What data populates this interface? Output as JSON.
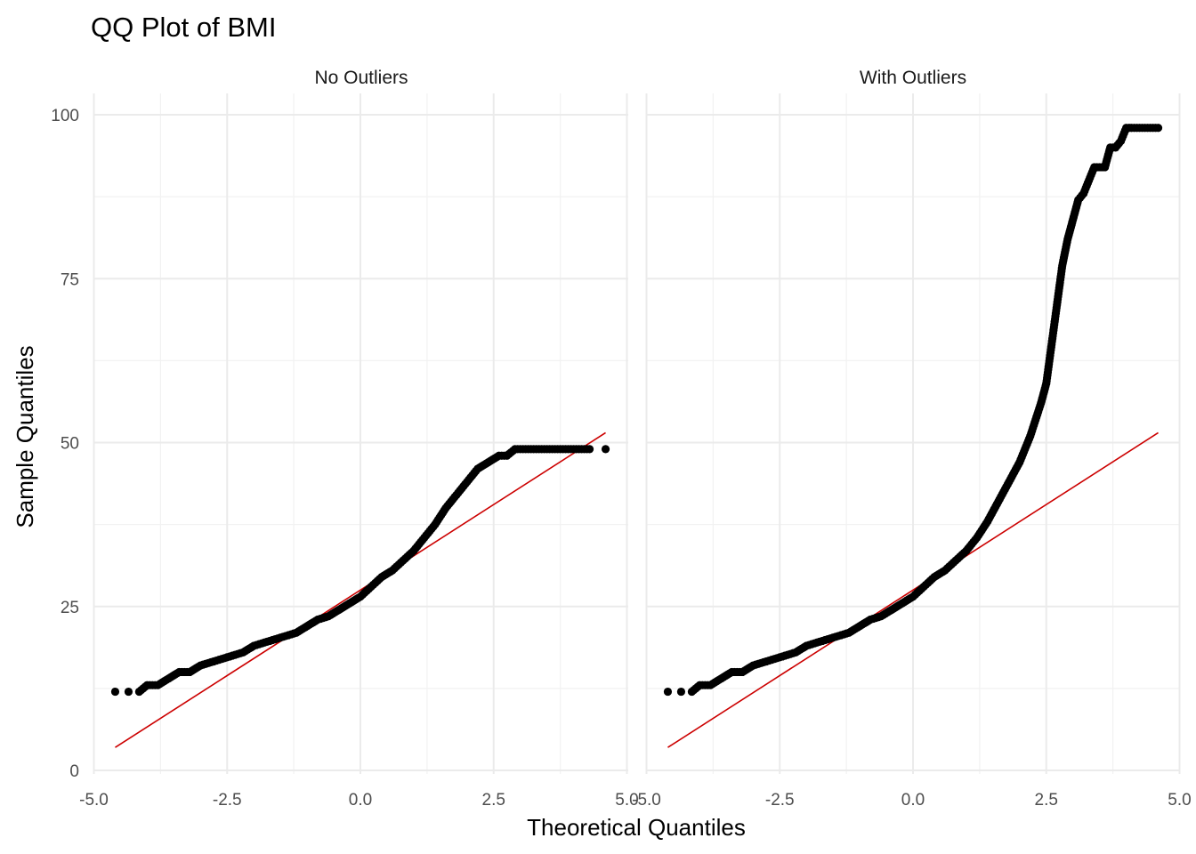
{
  "chart_data": {
    "type": "scatter",
    "title": "QQ Plot of BMI",
    "xlabel": "Theoretical Quantiles",
    "ylabel": "Sample Quantiles",
    "xlim": [
      -5,
      5
    ],
    "ylim": [
      0,
      100
    ],
    "x_ticks": [
      -5.0,
      -2.5,
      0.0,
      2.5,
      5.0
    ],
    "x_tick_labels": [
      "-5.0",
      "-2.5",
      "0.0",
      "2.5",
      "5.0"
    ],
    "y_ticks": [
      0,
      25,
      50,
      75,
      100
    ],
    "y_tick_labels": [
      "0",
      "25",
      "50",
      "75",
      "100"
    ],
    "grid": true,
    "legend": "none",
    "colors": {
      "points": "#000000",
      "reference_line": "#cc0000",
      "grid": "#ebebeb"
    },
    "panels": [
      {
        "name": "No Outliers",
        "series": [
          {
            "type": "scatter",
            "x": [
              -4.6,
              -4.35,
              -4.15,
              -4.0,
              -3.8,
              -3.6,
              -3.4,
              -3.2,
              -3.0,
              -2.8,
              -2.6,
              -2.4,
              -2.2,
              -2.0,
              -1.8,
              -1.6,
              -1.4,
              -1.2,
              -1.0,
              -0.8,
              -0.6,
              -0.4,
              -0.2,
              0.0,
              0.2,
              0.4,
              0.6,
              0.8,
              1.0,
              1.2,
              1.4,
              1.6,
              1.8,
              2.0,
              2.2,
              2.4,
              2.6,
              2.75,
              2.9,
              3.1,
              3.3,
              3.5,
              3.7,
              3.9,
              4.1,
              4.3,
              4.6
            ],
            "y": [
              12,
              12,
              12,
              13,
              13,
              14,
              15,
              15,
              16,
              16.5,
              17,
              17.5,
              18,
              19,
              19.5,
              20,
              20.5,
              21,
              22,
              23,
              23.5,
              24.5,
              25.5,
              26.5,
              28,
              29.5,
              30.5,
              32,
              33.5,
              35.5,
              37.5,
              40,
              42,
              44,
              46,
              47,
              48,
              48,
              49,
              49,
              49,
              49,
              49,
              49,
              49,
              49,
              49
            ]
          },
          {
            "type": "line",
            "x": [
              -4.6,
              4.6
            ],
            "y": [
              3.5,
              51.5
            ]
          }
        ]
      },
      {
        "name": "With Outliers",
        "series": [
          {
            "type": "scatter",
            "x": [
              -4.6,
              -4.35,
              -4.15,
              -4.0,
              -3.8,
              -3.6,
              -3.4,
              -3.2,
              -3.0,
              -2.8,
              -2.6,
              -2.4,
              -2.2,
              -2.0,
              -1.8,
              -1.6,
              -1.4,
              -1.2,
              -1.0,
              -0.8,
              -0.6,
              -0.4,
              -0.2,
              0.0,
              0.2,
              0.4,
              0.6,
              0.8,
              1.0,
              1.2,
              1.4,
              1.6,
              1.8,
              2.0,
              2.1,
              2.2,
              2.3,
              2.4,
              2.5,
              2.55,
              2.6,
              2.65,
              2.7,
              2.75,
              2.8,
              2.9,
              3.0,
              3.1,
              3.2,
              3.3,
              3.4,
              3.5,
              3.6,
              3.7,
              3.8,
              3.9,
              4.0,
              4.1,
              4.2,
              4.3,
              4.4,
              4.6
            ],
            "y": [
              12,
              12,
              12,
              13,
              13,
              14,
              15,
              15,
              16,
              16.5,
              17,
              17.5,
              18,
              19,
              19.5,
              20,
              20.5,
              21,
              22,
              23,
              23.5,
              24.5,
              25.5,
              26.5,
              28,
              29.5,
              30.5,
              32,
              33.5,
              35.5,
              38,
              41,
              44,
              47,
              49,
              51,
              53.5,
              56,
              59,
              62,
              65,
              68,
              71,
              74,
              77,
              81,
              84,
              87,
              88,
              90,
              92,
              92,
              92,
              95,
              95,
              96,
              98,
              98,
              98,
              98,
              98,
              98
            ]
          },
          {
            "type": "line",
            "x": [
              -4.6,
              4.6
            ],
            "y": [
              3.5,
              51.5
            ]
          }
        ]
      }
    ]
  }
}
